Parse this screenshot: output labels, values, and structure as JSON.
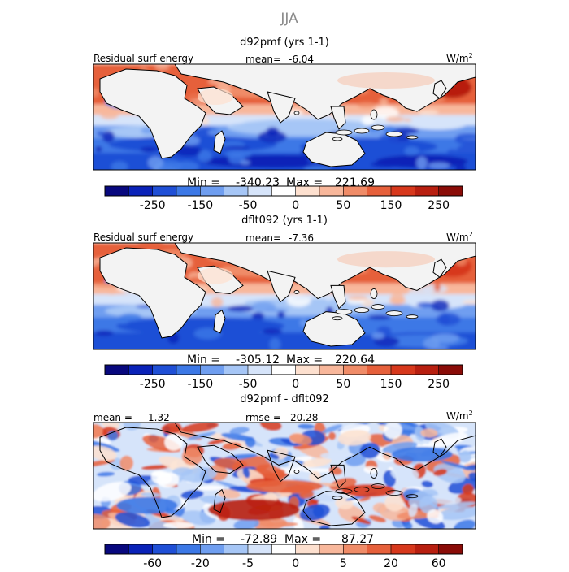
{
  "figure": {
    "title": "JJA"
  },
  "colors": {
    "scale": [
      "#08087e",
      "#0a22b8",
      "#1f4fd6",
      "#3c78e6",
      "#6f9ef0",
      "#a6c6f6",
      "#d6e4fa",
      "#ffffff",
      "#fde0cf",
      "#f8b79b",
      "#f08c68",
      "#e6603b",
      "#d7381c",
      "#b81f10",
      "#8a0c08"
    ],
    "land": "#f3f3f3"
  },
  "chart_data": [
    {
      "type": "heatmap",
      "id": "panel1",
      "title": "d92pmf (yrs 1-1)",
      "left_label": "Residual surf energy",
      "stat1_label": "mean=",
      "stat1_value": "-6.04",
      "units": "W/m",
      "units_sup": "2",
      "min_label": "Min =",
      "min_value": "-340.23",
      "max_label": "Max =",
      "max_value": "221.69",
      "colorbar_ticks": [
        "-250",
        "-150",
        "-50",
        "0",
        "50",
        "150",
        "250"
      ],
      "colorbar_levels": [
        -300,
        -250,
        -200,
        -150,
        -100,
        -50,
        -25,
        0,
        25,
        50,
        100,
        150,
        200,
        250,
        300
      ]
    },
    {
      "type": "heatmap",
      "id": "panel2",
      "title": "dflt092 (yrs 1-1)",
      "left_label": "Residual surf energy",
      "stat1_label": "mean=",
      "stat1_value": "-7.36",
      "units": "W/m",
      "units_sup": "2",
      "min_label": "Min =",
      "min_value": "-305.12",
      "max_label": "Max =",
      "max_value": "220.64",
      "colorbar_ticks": [
        "-250",
        "-150",
        "-50",
        "0",
        "50",
        "150",
        "250"
      ],
      "colorbar_levels": [
        -300,
        -250,
        -200,
        -150,
        -100,
        -50,
        -25,
        0,
        25,
        50,
        100,
        150,
        200,
        250,
        300
      ]
    },
    {
      "type": "heatmap",
      "id": "panel3",
      "title": "d92pmf - dflt092",
      "left_label": "mean =",
      "left_value": "1.32",
      "stat1_label": "rmse =",
      "stat1_value": "20.28",
      "units": "W/m",
      "units_sup": "2",
      "min_label": "Min =",
      "min_value": "-72.89",
      "max_label": "Max =",
      "max_value": "87.27",
      "colorbar_ticks": [
        "-60",
        "-20",
        "-5",
        "0",
        "5",
        "20",
        "60"
      ],
      "colorbar_levels": [
        -80,
        -60,
        -40,
        -20,
        -10,
        -5,
        -2,
        0,
        2,
        5,
        10,
        20,
        40,
        60,
        80
      ]
    }
  ]
}
